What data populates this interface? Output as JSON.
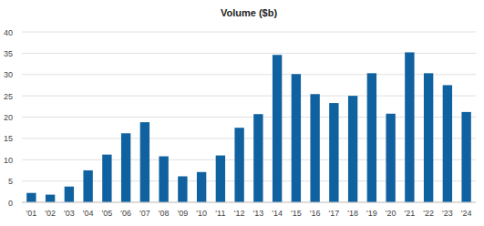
{
  "chart_data": {
    "type": "bar",
    "title": "Volume ($b)",
    "categories": [
      "'01",
      "'02",
      "'03",
      "'04",
      "'05",
      "'06",
      "'07",
      "'08",
      "'09",
      "'10",
      "'11",
      "'12",
      "'13",
      "'14",
      "'15",
      "'16",
      "'17",
      "'18",
      "'19",
      "'20",
      "'21",
      "'22",
      "'23",
      "'24"
    ],
    "values": [
      2.2,
      1.8,
      3.7,
      7.5,
      11.2,
      16.2,
      18.8,
      10.8,
      6.1,
      7.1,
      11,
      17.5,
      20.7,
      34.6,
      30.1,
      25.4,
      23.3,
      25,
      30.3,
      20.8,
      35.2,
      30.3,
      27.5,
      21.2
    ],
    "color": "#0f629f",
    "ylim": [
      0,
      40
    ],
    "yticks": [
      0,
      5,
      10,
      15,
      20,
      25,
      30,
      35,
      40
    ],
    "grid": true
  }
}
